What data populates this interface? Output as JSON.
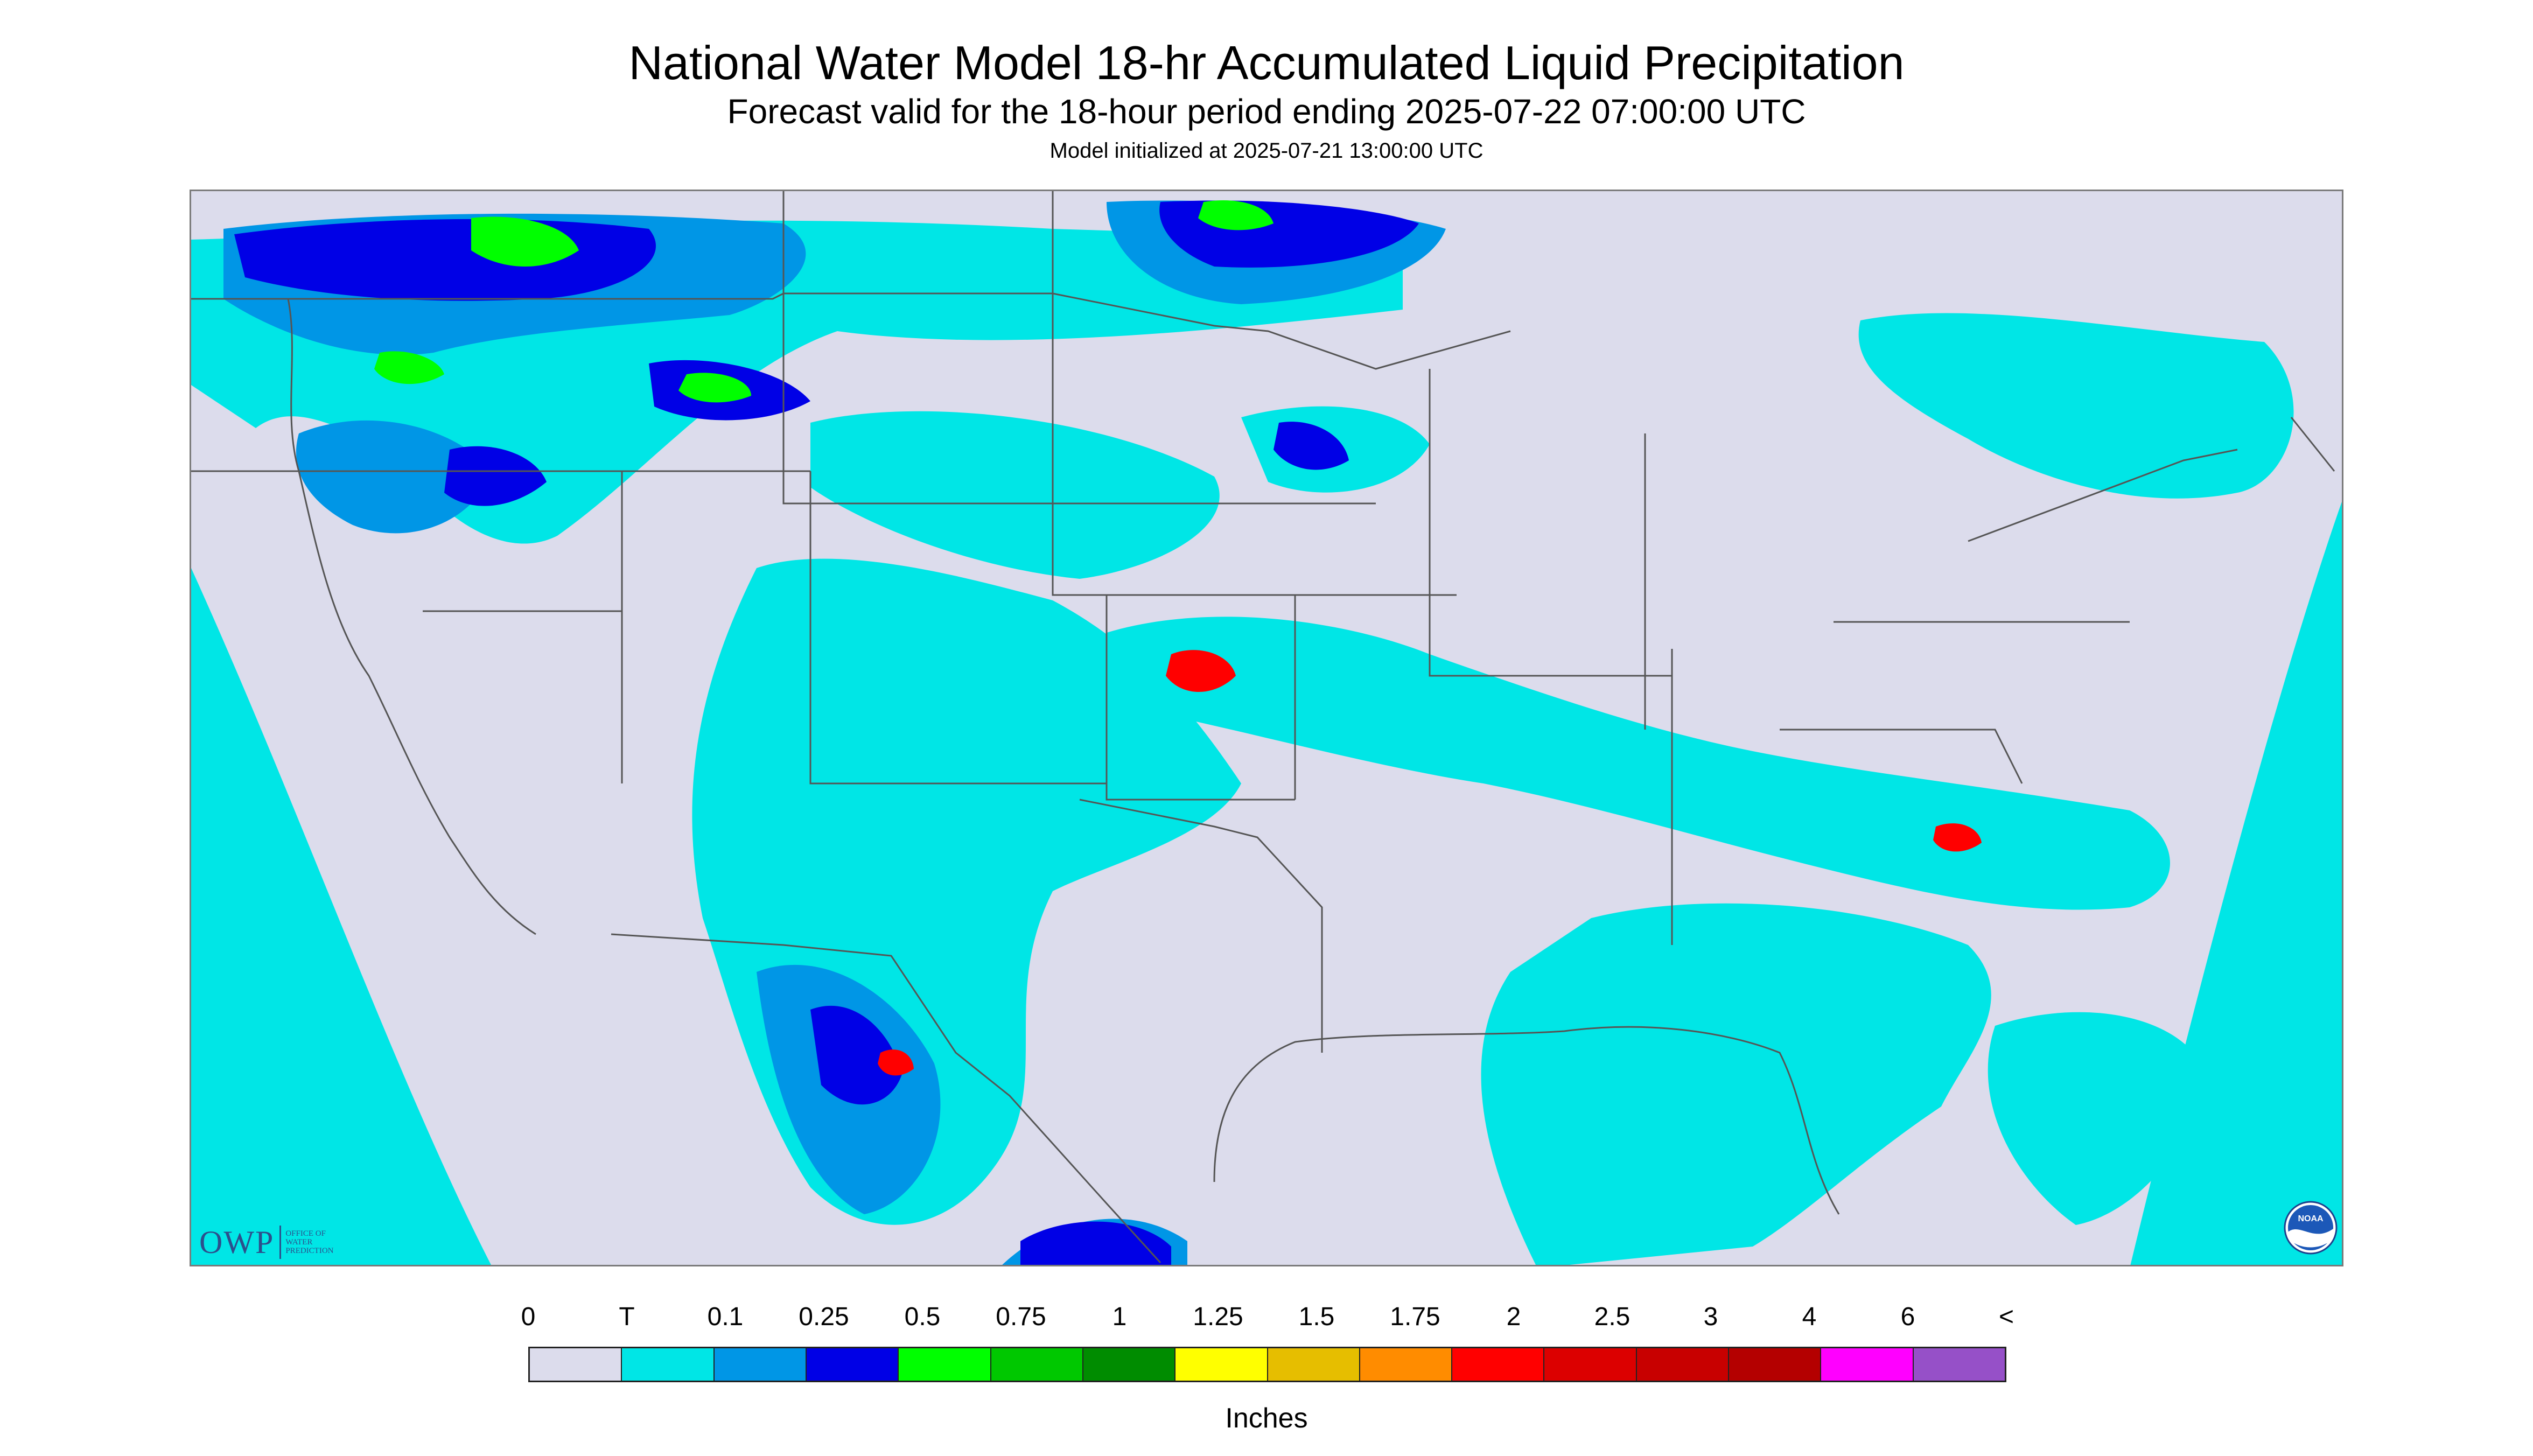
{
  "header": {
    "title": "National Water Model 18-hr Accumulated Liquid Precipitation",
    "subtitle": "Forecast valid for the 18-hour period ending 2025-07-22 07:00:00 UTC",
    "init_line": "Model initialized at 2025-07-21 13:00:00 UTC"
  },
  "logos": {
    "owp": {
      "acronym": "OWP",
      "lines": [
        "OFFICE OF",
        "WATER",
        "PREDICTION"
      ]
    },
    "noaa": {
      "text": "NOAA"
    }
  },
  "legend": {
    "tick_labels": [
      "0",
      "T",
      "0.1",
      "0.25",
      "0.5",
      "0.75",
      "1",
      "1.25",
      "1.5",
      "1.75",
      "2",
      "2.5",
      "3",
      "4",
      "6",
      "<"
    ],
    "colors": [
      "#dcdcec",
      "#00e6e6",
      "#0096e6",
      "#0000e6",
      "#00ff00",
      "#00c800",
      "#008c00",
      "#ffff00",
      "#e6be00",
      "#ff8c00",
      "#ff0000",
      "#dc0000",
      "#c80000",
      "#b40000",
      "#ff00ff",
      "#9650c8"
    ],
    "units": "Inches"
  },
  "map": {
    "region": "CONUS",
    "colors": {
      "land_no_precip": "#dcdcec",
      "outside_domain": "#00e6e6",
      "trace": "#00e6e6",
      "light": "#0096e6",
      "moderate": "#0000e6",
      "heavy": "#00ff00",
      "heavier": "#00c800",
      "very_heavy": "#ff0000",
      "boundary": "#555555"
    }
  }
}
